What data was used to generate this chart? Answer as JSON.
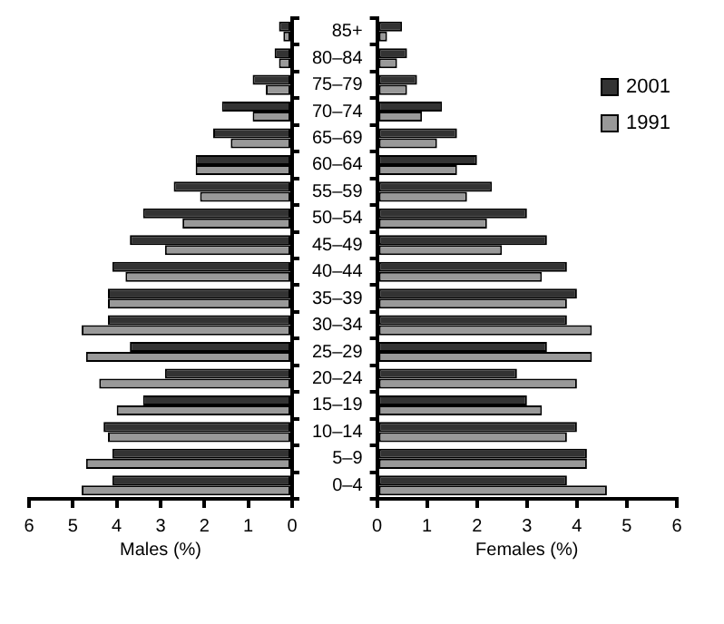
{
  "chart_data": [
    {
      "type": "bar",
      "orientation": "horizontal",
      "xlabel": "Males (%)",
      "categories": [
        null,
        null,
        null,
        null,
        null,
        null,
        null,
        null,
        null,
        null,
        null,
        null,
        null,
        null,
        null,
        null,
        null,
        null
      ],
      "series": [
        {
          "color": "#333333",
          "values": [
            0.3,
            0.4,
            0.9,
            1.6,
            1.8,
            2.2,
            2.7,
            3.4,
            3.7,
            4.1,
            4.2,
            4.2,
            3.7,
            2.9,
            3.4,
            4.3,
            4.1,
            4.1
          ]
        },
        {
          "color": "#999999",
          "values": [
            0.2,
            0.3,
            0.6,
            0.9,
            1.4,
            2.2,
            2.1,
            2.5,
            2.9,
            3.8,
            4.2,
            4.8,
            4.7,
            4.4,
            4.0,
            4.2,
            4.7,
            4.8
          ]
        }
      ],
      "xlim": [
        6,
        0
      ],
      "xticks": [
        6,
        5,
        4,
        3,
        2,
        1,
        0
      ],
      "tick_labels": "x",
      "grid": false,
      "legend": false
    },
    {
      "type": "bar",
      "orientation": "horizontal",
      "xlabel": "Females (%)",
      "categories": [
        "85+",
        "80–84",
        "75–79",
        "70–74",
        "65–69",
        "60–64",
        "55–59",
        "50–54",
        "45–49",
        "40–44",
        "35–39",
        "30–34",
        "25–29",
        "20–24",
        "15–19",
        "10–14",
        "5–9",
        "0–4"
      ],
      "series": [
        {
          "name": "2001",
          "color": "#333333",
          "values": [
            0.5,
            0.6,
            0.8,
            1.3,
            1.6,
            2.0,
            2.3,
            3.0,
            3.4,
            3.8,
            4.0,
            3.8,
            3.4,
            2.8,
            3.0,
            4.0,
            4.2,
            3.8
          ]
        },
        {
          "name": "1991",
          "color": "#999999",
          "values": [
            0.2,
            0.4,
            0.6,
            0.9,
            1.2,
            1.6,
            1.8,
            2.2,
            2.5,
            3.3,
            3.8,
            4.3,
            4.3,
            4.0,
            3.3,
            3.8,
            4.2,
            4.6
          ]
        }
      ],
      "xlim": [
        0,
        6
      ],
      "xticks": [
        0,
        1,
        2,
        3,
        4,
        5,
        6
      ],
      "grid": false,
      "legend": "top right"
    }
  ]
}
